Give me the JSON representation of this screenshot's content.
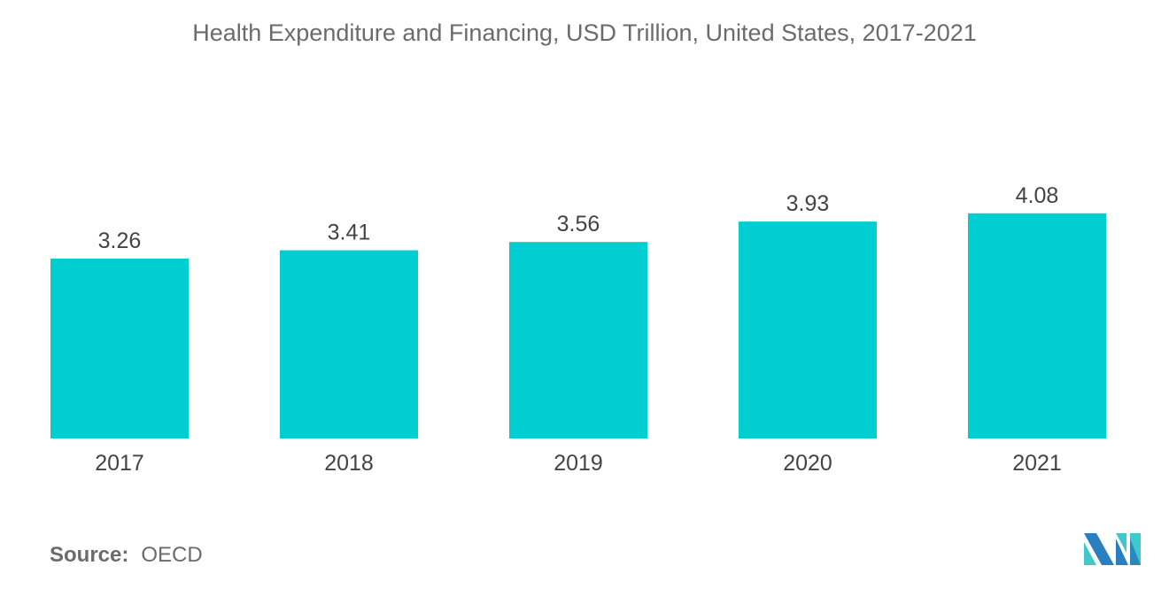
{
  "chart_data": {
    "type": "bar",
    "title": "Health Expenditure and Financing, USD Trillion, United States, 2017-2021",
    "categories": [
      "2017",
      "2018",
      "2019",
      "2020",
      "2021"
    ],
    "values": [
      3.26,
      3.41,
      3.56,
      3.93,
      4.08
    ],
    "xlabel": "",
    "ylabel": "",
    "ylim": [
      0,
      4.6
    ],
    "grid": false,
    "bar_color": "#00ced1"
  },
  "source": {
    "label": "Source:",
    "value": "OECD"
  },
  "logo": {
    "colors": [
      "#2a7fc0",
      "#3fc9c9"
    ]
  }
}
